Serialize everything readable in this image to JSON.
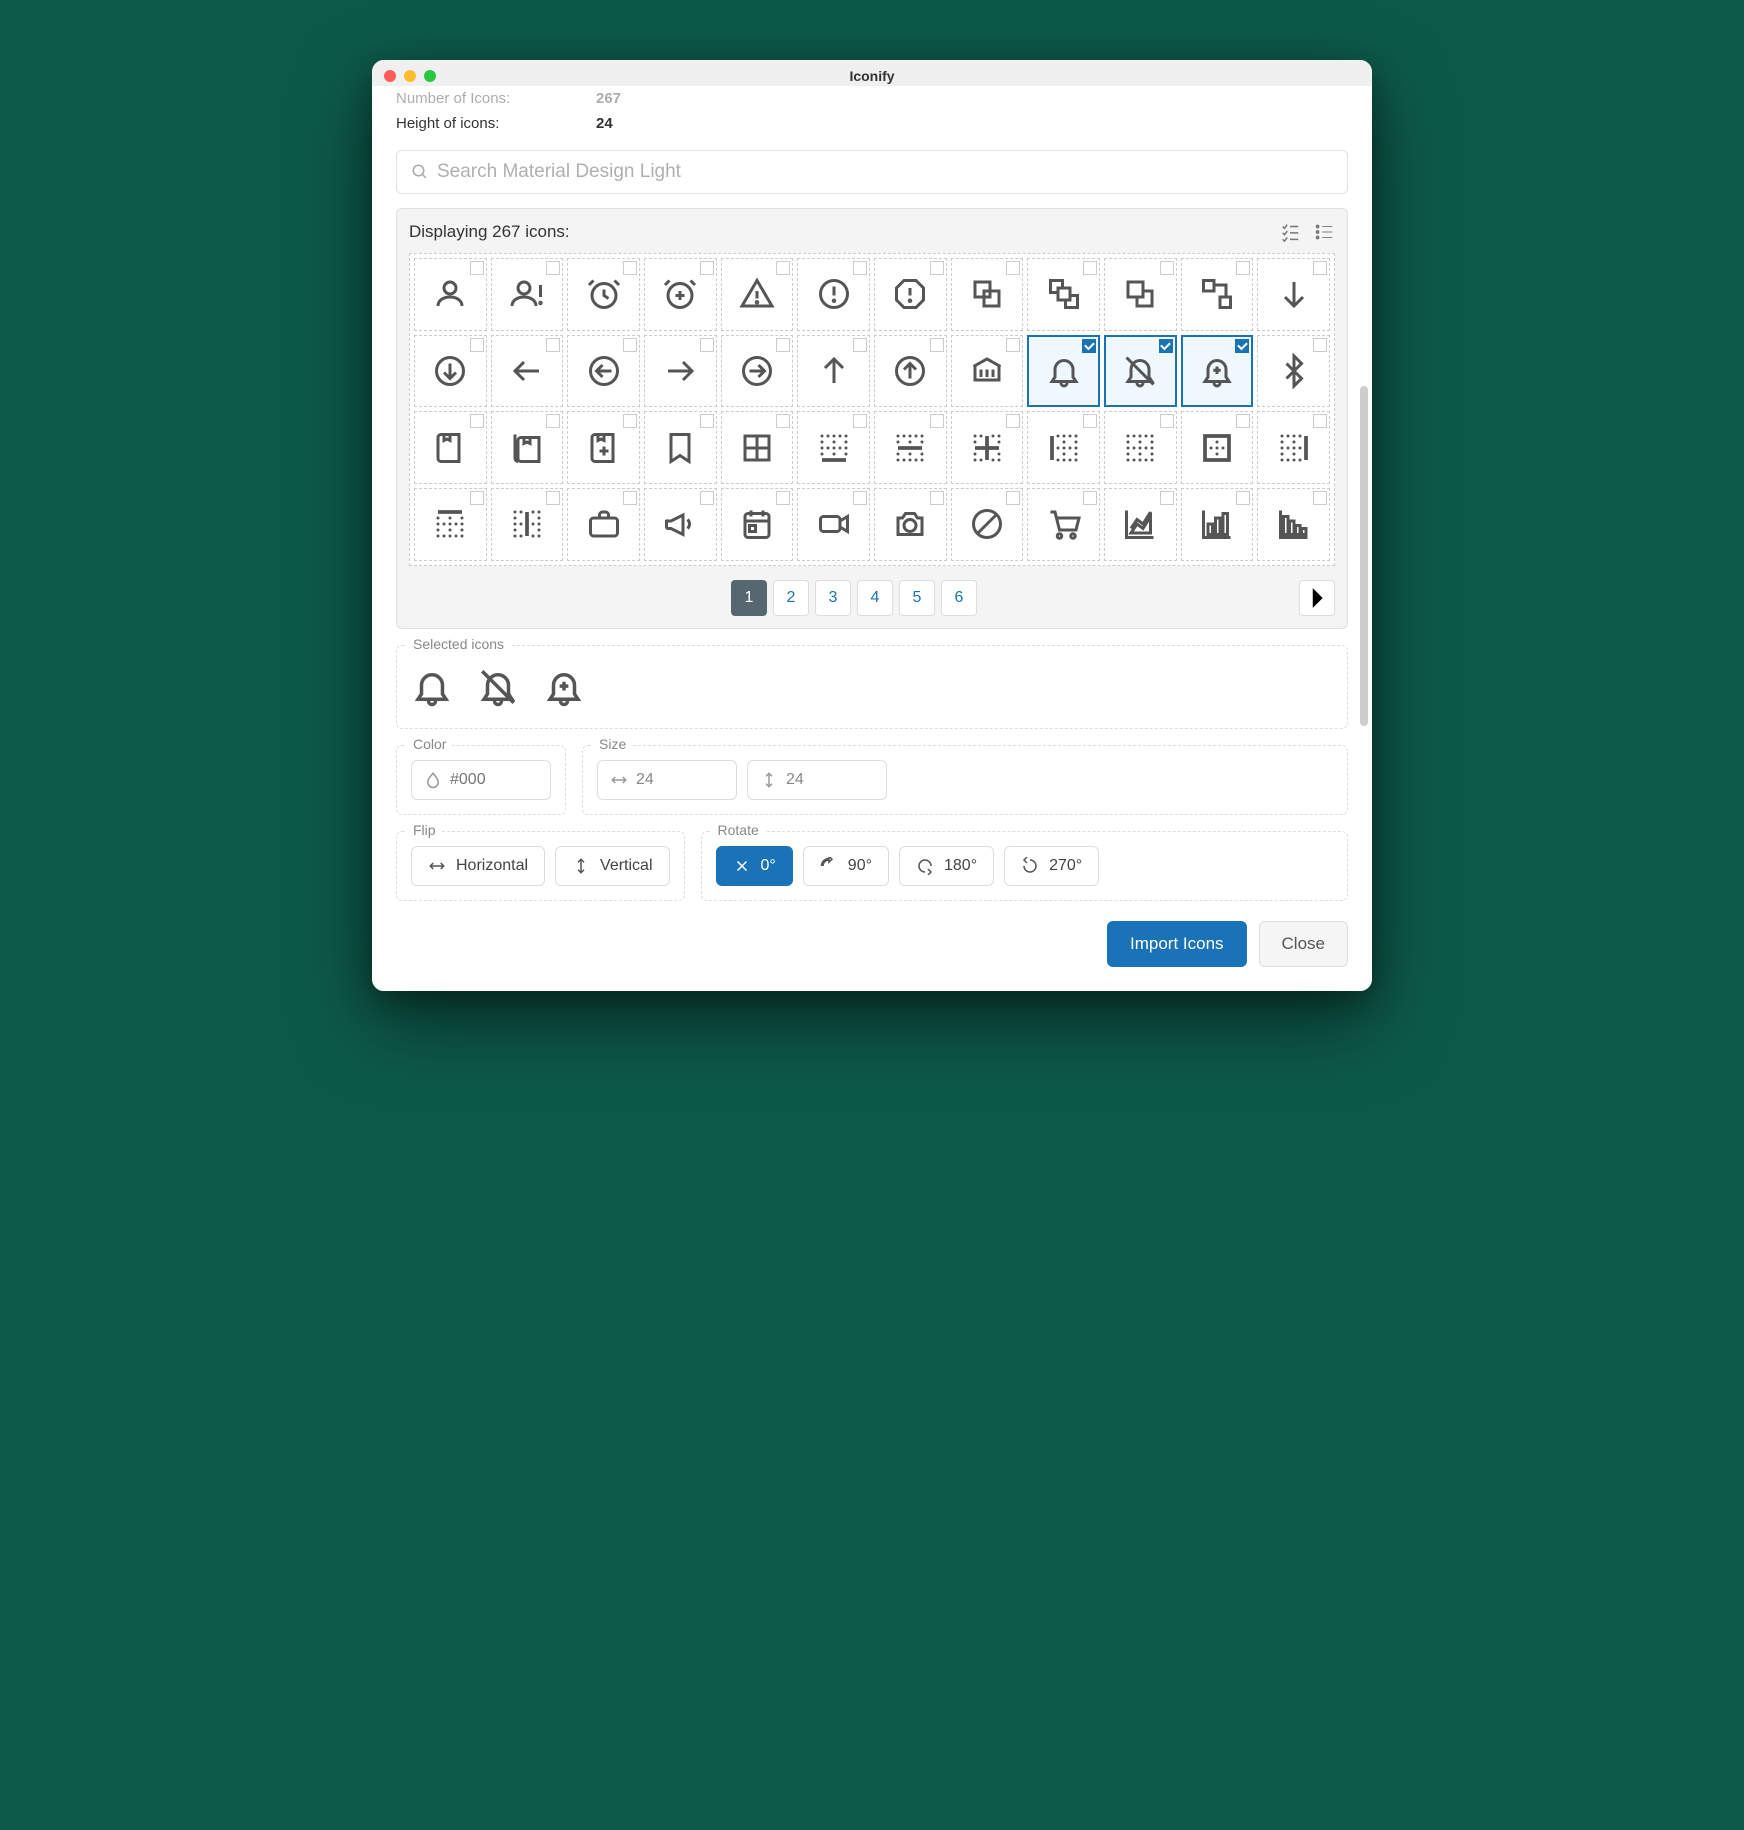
{
  "window": {
    "title": "Iconify"
  },
  "meta": {
    "number_label": "Number of Icons:",
    "number_value": "267",
    "height_label": "Height of icons:",
    "height_value": "24"
  },
  "search": {
    "placeholder": "Search Material Design Light"
  },
  "panel": {
    "title": "Displaying 267 icons:"
  },
  "icons": [
    {
      "name": "account",
      "sel": false
    },
    {
      "name": "account-alert",
      "sel": false
    },
    {
      "name": "alarm",
      "sel": false
    },
    {
      "name": "alarm-plus",
      "sel": false
    },
    {
      "name": "alert",
      "sel": false
    },
    {
      "name": "alert-circle",
      "sel": false
    },
    {
      "name": "alert-octagon",
      "sel": false
    },
    {
      "name": "arrange-bring-forward",
      "sel": false
    },
    {
      "name": "arrange-bring-to-front",
      "sel": false
    },
    {
      "name": "arrange-send-backward",
      "sel": false
    },
    {
      "name": "arrange-send-to-back",
      "sel": false
    },
    {
      "name": "arrow-down",
      "sel": false
    },
    {
      "name": "arrow-down-circle",
      "sel": false
    },
    {
      "name": "arrow-left",
      "sel": false
    },
    {
      "name": "arrow-left-circle",
      "sel": false
    },
    {
      "name": "arrow-right",
      "sel": false
    },
    {
      "name": "arrow-right-circle",
      "sel": false
    },
    {
      "name": "arrow-up",
      "sel": false
    },
    {
      "name": "arrow-up-circle",
      "sel": false
    },
    {
      "name": "bank",
      "sel": false
    },
    {
      "name": "bell",
      "sel": true
    },
    {
      "name": "bell-off",
      "sel": true
    },
    {
      "name": "bell-plus",
      "sel": true
    },
    {
      "name": "bluetooth",
      "sel": false
    },
    {
      "name": "book",
      "sel": false
    },
    {
      "name": "book-multiple",
      "sel": false
    },
    {
      "name": "book-plus",
      "sel": false
    },
    {
      "name": "bookmark",
      "sel": false
    },
    {
      "name": "border-all",
      "sel": false
    },
    {
      "name": "border-bottom",
      "sel": false
    },
    {
      "name": "border-horizontal",
      "sel": false
    },
    {
      "name": "border-inside",
      "sel": false
    },
    {
      "name": "border-left",
      "sel": false
    },
    {
      "name": "border-none",
      "sel": false
    },
    {
      "name": "border-outside",
      "sel": false
    },
    {
      "name": "border-right",
      "sel": false
    },
    {
      "name": "border-top",
      "sel": false
    },
    {
      "name": "border-vertical",
      "sel": false
    },
    {
      "name": "briefcase",
      "sel": false
    },
    {
      "name": "bullhorn",
      "sel": false
    },
    {
      "name": "calendar",
      "sel": false
    },
    {
      "name": "camcorder",
      "sel": false
    },
    {
      "name": "camera",
      "sel": false
    },
    {
      "name": "cancel",
      "sel": false
    },
    {
      "name": "cart",
      "sel": false
    },
    {
      "name": "chart-areaspline",
      "sel": false
    },
    {
      "name": "chart-bar",
      "sel": false
    },
    {
      "name": "chart-histogram",
      "sel": false
    }
  ],
  "pagination": {
    "pages": [
      "1",
      "2",
      "3",
      "4",
      "5",
      "6"
    ],
    "active": "1"
  },
  "selected": {
    "label": "Selected icons",
    "icons": [
      "bell",
      "bell-off",
      "bell-plus"
    ]
  },
  "color": {
    "label": "Color",
    "placeholder": "#000"
  },
  "size": {
    "label": "Size",
    "w": "24",
    "h": "24"
  },
  "flip": {
    "label": "Flip",
    "horizontal": "Horizontal",
    "vertical": "Vertical"
  },
  "rotate": {
    "label": "Rotate",
    "options": [
      "0°",
      "90°",
      "180°",
      "270°"
    ],
    "active": "0°"
  },
  "footer": {
    "import": "Import Icons",
    "close": "Close"
  },
  "colors": {
    "primary": "#1a73b7",
    "icon_stroke": "#555555",
    "border_dashed": "#cccccc",
    "bg_panel": "#f4f4f4"
  }
}
